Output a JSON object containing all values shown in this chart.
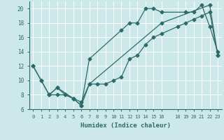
{
  "xlabel": "Humidex (Indice chaleur)",
  "bg_color": "#cde8e8",
  "line_color": "#2d6b6b",
  "grid_color": "#ffffff",
  "xlim": [
    -0.5,
    23.5
  ],
  "ylim": [
    6,
    21
  ],
  "yticks": [
    6,
    8,
    10,
    12,
    14,
    16,
    18,
    20
  ],
  "xticks": [
    0,
    1,
    2,
    3,
    4,
    5,
    6,
    7,
    8,
    9,
    10,
    11,
    12,
    13,
    14,
    15,
    16,
    18,
    19,
    20,
    21,
    22,
    23
  ],
  "line1_x": [
    0,
    1,
    2,
    3,
    5,
    6,
    7,
    16,
    22,
    23
  ],
  "line1_y": [
    12,
    10,
    8,
    9,
    7.5,
    7.0,
    9.5,
    18,
    20.5,
    13.5
  ],
  "line2_x": [
    2,
    3,
    4,
    5,
    6,
    7,
    11,
    12,
    13,
    14,
    15,
    16,
    19,
    20,
    21,
    22,
    23
  ],
  "line2_y": [
    8,
    9,
    8,
    7.5,
    6.5,
    13,
    17,
    18.0,
    18.0,
    20.0,
    20.0,
    19.5,
    19.5,
    19.5,
    20.5,
    17.5,
    14.0
  ],
  "line3_x": [
    0,
    1,
    2,
    3,
    4,
    5,
    6,
    7,
    8,
    9,
    10,
    11,
    12,
    13,
    14,
    15,
    16,
    18,
    19,
    20,
    21,
    22,
    23
  ],
  "line3_y": [
    12,
    10,
    8,
    8,
    8,
    7.5,
    6.5,
    9.5,
    9.5,
    9.5,
    10.0,
    10.5,
    13.0,
    13.5,
    15.0,
    16.0,
    16.5,
    17.5,
    18.0,
    18.5,
    19.0,
    19.5,
    13.5
  ]
}
